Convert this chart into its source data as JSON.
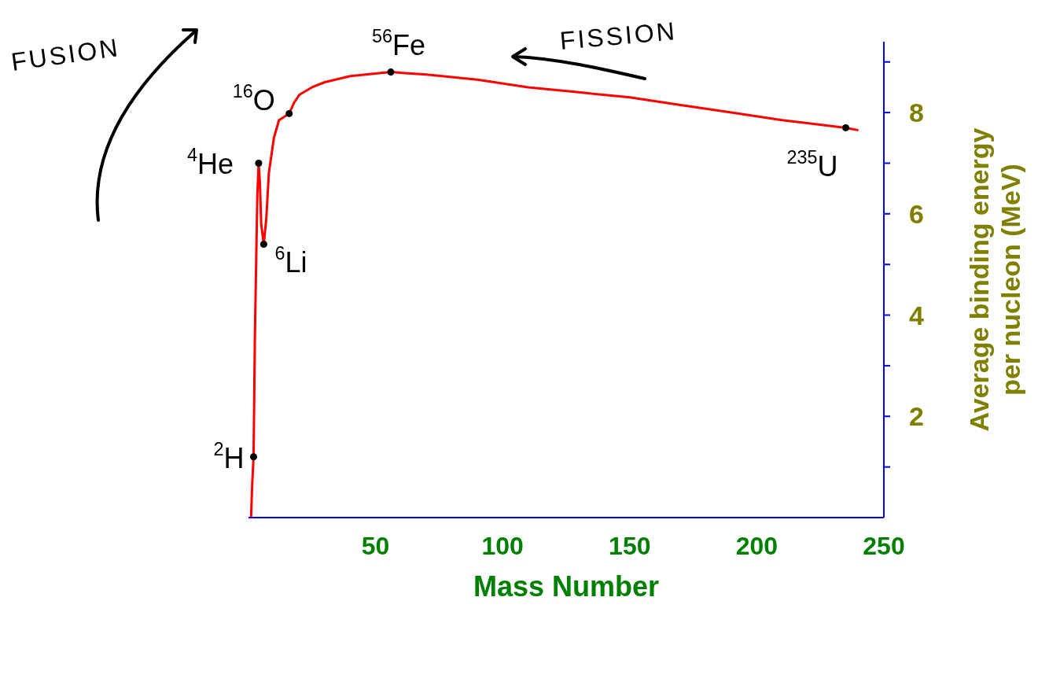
{
  "chart_data": {
    "type": "line",
    "xlabel": "Mass Number",
    "ylabel": "Average binding energy per nucleon (MeV)",
    "xlim": [
      0,
      250
    ],
    "xticks": [
      50,
      100,
      150,
      200,
      250
    ],
    "ylim": [
      0,
      9.4
    ],
    "yticks": [
      {
        "value": 1,
        "label": null
      },
      2,
      {
        "value": 3,
        "label": null
      },
      4,
      {
        "value": 5,
        "label": null
      },
      6,
      {
        "value": 7,
        "label": null
      },
      8,
      {
        "value": 9,
        "label": null
      }
    ],
    "series": [
      {
        "color": "#ff0000",
        "marker": "none",
        "line_style": "solid",
        "x": [
          1,
          1.5,
          2,
          2.5,
          3,
          3.5,
          4,
          4.5,
          5,
          6,
          7,
          8,
          10,
          12,
          16,
          18,
          20,
          25,
          30,
          40,
          56,
          70,
          90,
          110,
          130,
          150,
          170,
          190,
          210,
          235,
          240
        ],
        "values": [
          0,
          0.7,
          1.2,
          3.5,
          5.0,
          6.4,
          7.0,
          6.6,
          5.8,
          5.4,
          5.9,
          6.8,
          7.5,
          7.85,
          7.98,
          8.2,
          8.35,
          8.5,
          8.6,
          8.72,
          8.8,
          8.75,
          8.65,
          8.5,
          8.4,
          8.3,
          8.15,
          8.0,
          7.85,
          7.7,
          7.65
        ]
      },
      {
        "type": "scatter",
        "color": "#000000",
        "marker": "circle",
        "x": [
          2,
          4,
          6,
          16,
          56,
          235
        ],
        "values": [
          1.2,
          7.0,
          5.4,
          7.98,
          8.8,
          7.7
        ]
      }
    ],
    "annotations": [
      {
        "text": "$^{2}$H",
        "x": 2,
        "y": 1.2
      },
      {
        "text": "$^{4}$He",
        "x": 4,
        "y": 7.0
      },
      {
        "text": "$^{6}$Li",
        "x": 6,
        "y": 5.4
      },
      {
        "text": "$^{16}$O",
        "x": 16,
        "y": 7.98
      },
      {
        "text": "$^{56}$Fe",
        "x": 56,
        "y": 8.8
      },
      {
        "text": "$^{235}$U",
        "x": 235,
        "y": 7.7
      },
      "FUSION",
      "FISSION"
    ]
  }
}
